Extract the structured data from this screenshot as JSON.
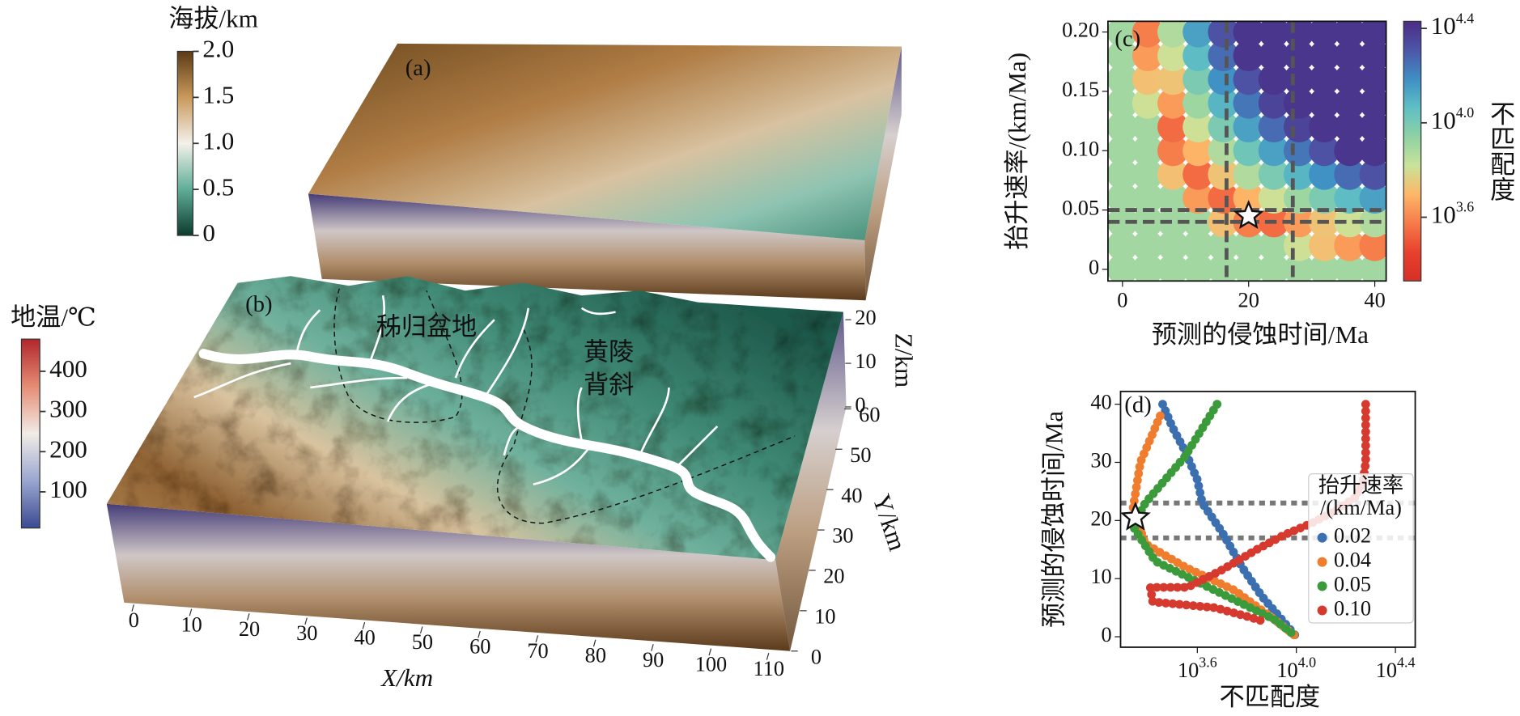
{
  "chart_data": [
    {
      "type": "terrain",
      "panel_label": "(a)",
      "colorbar": {
        "title": "海拔/km",
        "clim": [
          0,
          2
        ],
        "ticks": [
          0,
          0.5,
          {
            "value": 1,
            "label": "1.0"
          },
          1.5,
          {
            "value": 2,
            "label": "2.0"
          }
        ],
        "colors": [
          "#0d3b2e",
          "#5fae97",
          "#f3f1ea",
          "#c9995c",
          "#5b3a15"
        ]
      }
    },
    {
      "type": "terrain",
      "panel_label": "(b)",
      "colorbar": {
        "title": "地温/℃",
        "clim": [
          10,
          480
        ],
        "ticks": [
          100,
          200,
          300,
          400
        ],
        "colors": [
          "#3a4a91",
          "#9aa6d0",
          "#f1ece6",
          "#e58c74",
          "#b1262c"
        ]
      },
      "basin_label": "秭归盆地",
      "anticline_label": [
        "黄陵",
        "背斜"
      ],
      "xlabel": "X/km",
      "ylabel": "Y/km",
      "zlabel": "Z/km",
      "xlim": [
        0,
        110
      ],
      "ylim": [
        0,
        60
      ],
      "zlim": [
        0,
        20
      ],
      "xticks": [
        0,
        10,
        20,
        30,
        40,
        50,
        60,
        70,
        80,
        90,
        100,
        110
      ],
      "yticks": [
        0,
        10,
        20,
        30,
        40,
        50,
        60
      ],
      "zticks": [
        0,
        10,
        20
      ]
    },
    {
      "type": "scatter_grid",
      "panel_label": "(c)",
      "xlabel": "预测的侵蚀时间/Ma",
      "ylabel": "抬升速率/(km/Ma)",
      "x": [
        0,
        4,
        8,
        12,
        16,
        20,
        24,
        28,
        32,
        36,
        40
      ],
      "y": [
        0,
        0.02,
        0.04,
        0.06,
        0.08,
        0.1,
        0.12,
        0.14,
        0.16,
        0.18,
        0.2
      ],
      "z": [
        [
          3.9,
          3.9,
          3.9,
          3.9,
          3.9,
          3.9,
          3.9,
          3.9,
          3.9,
          3.9,
          3.9
        ],
        [
          3.9,
          3.9,
          3.9,
          3.9,
          3.9,
          3.9,
          3.9,
          3.81,
          3.72,
          3.64,
          3.58
        ],
        [
          3.9,
          3.9,
          3.9,
          3.9,
          3.72,
          3.58,
          3.54,
          3.64,
          3.73,
          3.81,
          3.87
        ],
        [
          3.9,
          3.9,
          3.9,
          3.64,
          3.54,
          3.69,
          3.81,
          3.91,
          3.99,
          4.07,
          4.14
        ],
        [
          3.9,
          3.9,
          3.72,
          3.54,
          3.73,
          3.87,
          3.99,
          4.09,
          4.18,
          4.26,
          4.32
        ],
        [
          3.9,
          3.9,
          3.58,
          3.69,
          3.87,
          4.02,
          4.14,
          4.24,
          4.32,
          4.4,
          4.4
        ],
        [
          3.9,
          3.9,
          3.54,
          3.81,
          3.99,
          4.14,
          4.26,
          4.36,
          4.4,
          4.4,
          4.4
        ],
        [
          3.9,
          3.81,
          3.64,
          3.91,
          4.09,
          4.24,
          4.36,
          4.4,
          4.4,
          4.4,
          4.4
        ],
        [
          3.9,
          3.72,
          3.73,
          3.99,
          4.18,
          4.32,
          4.4,
          4.4,
          4.4,
          4.4,
          4.4
        ],
        [
          3.9,
          3.64,
          3.81,
          4.07,
          4.26,
          4.4,
          4.4,
          4.4,
          4.4,
          4.4,
          4.4
        ],
        [
          3.9,
          3.58,
          3.87,
          4.14,
          4.32,
          4.4,
          4.4,
          4.4,
          4.4,
          4.4,
          4.4
        ]
      ],
      "xlim": [
        -2.3,
        41.8
      ],
      "ylim": [
        -0.0098,
        0.209
      ],
      "xticks": [
        0,
        20,
        40
      ],
      "yticks": [
        0,
        0.05,
        {
          "value": 0.1,
          "label": "0.10"
        },
        0.15,
        {
          "value": 0.2,
          "label": "0.20"
        }
      ],
      "vlines": [
        16.5,
        27
      ],
      "hlines": [
        0.04,
        0.05
      ],
      "best_fit": {
        "x": 20,
        "y": 0.045
      },
      "colorbar": {
        "title": "不匹配度",
        "clim": [
          3.33,
          4.43
        ],
        "ticks": [
          {
            "value": 3.6,
            "label": "10",
            "exponent": "3.6"
          },
          {
            "value": 4.0,
            "label": "10",
            "exponent": "4.0"
          },
          {
            "value": 4.4,
            "label": "10",
            "exponent": "4.4"
          }
        ],
        "colors": [
          "#d62f27",
          "#e8412d",
          "#f67b4a",
          "#fdb768",
          "#c9e39a",
          "#8fd1a4",
          "#5fbfc4",
          "#3f8fc4",
          "#4d56a8",
          "#4b2c85"
        ]
      }
    },
    {
      "type": "scatter",
      "panel_label": "(d)",
      "xlabel": "不匹配度",
      "ylabel": "预测的侵蚀时间/Ma",
      "xlim": [
        3.29,
        4.48
      ],
      "ylim": [
        -1.8,
        42.2
      ],
      "xticks": [
        {
          "value": 3.6,
          "label": "10",
          "exponent": "3.6"
        },
        {
          "value": 4.0,
          "label": "10",
          "exponent": "4.0"
        },
        {
          "value": 4.4,
          "label": "10",
          "exponent": "4.4"
        }
      ],
      "yticks": [
        0,
        10,
        20,
        30,
        40
      ],
      "hlines": [
        17,
        23
      ],
      "best_fit": {
        "x": 3.35,
        "y": 20.5
      },
      "legend": {
        "title": [
          "抬升速率",
          "/(km/Ma)"
        ],
        "loc": "center right"
      },
      "series": [
        {
          "name": "0.02",
          "color": "#3b6fb0",
          "x": [
            3.46,
            3.5,
            3.55,
            3.6,
            3.62,
            3.7,
            3.78,
            3.86,
            3.94,
            4.0
          ],
          "y": [
            40,
            36,
            32,
            27,
            23,
            18,
            12,
            7,
            3,
            0
          ]
        },
        {
          "name": "0.04",
          "color": "#ef7d2d",
          "x": [
            3.45,
            3.37,
            3.34,
            3.39,
            3.55,
            3.75,
            3.91,
            4.0
          ],
          "y": [
            38,
            30,
            22,
            16,
            12,
            8,
            3,
            0
          ]
        },
        {
          "name": "0.05",
          "color": "#3b9b3b",
          "x": [
            3.68,
            3.55,
            3.39,
            3.34,
            3.43,
            3.67,
            3.91,
            4.0
          ],
          "y": [
            40,
            31,
            23,
            19,
            13,
            8,
            3,
            0
          ]
        },
        {
          "name": "0.10",
          "color": "#d63a2f",
          "x": [
            4.28,
            4.28,
            4.28,
            4.27,
            4.24,
            4.15,
            4.06,
            3.95,
            3.84,
            3.7,
            3.56,
            3.41,
            3.42,
            3.67,
            3.8,
            3.88
          ],
          "y": [
            40,
            35,
            30,
            27,
            24,
            21.5,
            19.5,
            17.5,
            15,
            11.5,
            8.5,
            8.5,
            6,
            5,
            3.5,
            2.5
          ]
        }
      ]
    }
  ]
}
